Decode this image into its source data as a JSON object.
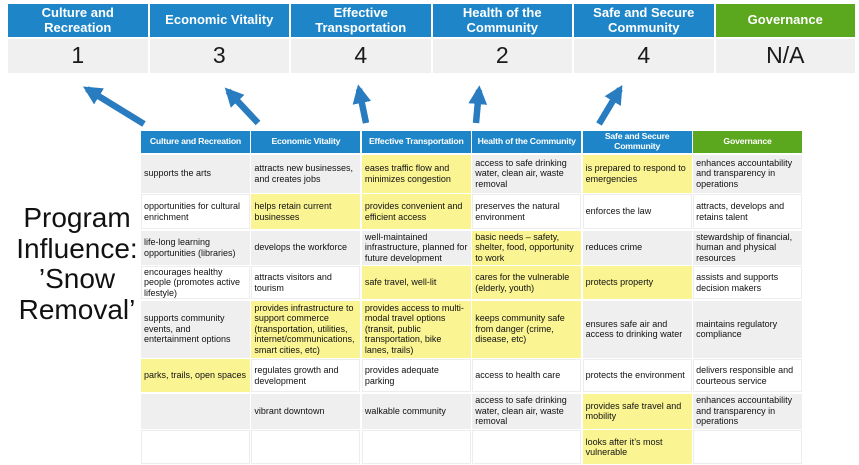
{
  "program_label": "Program Influence: ’Snow Removal’",
  "colors": {
    "header_blue": "#1E86C8",
    "governance_green": "#5BA71E",
    "score_bg": "#F0F0F0",
    "band_gray": "#EFEFEF",
    "highlight_yellow": "#FAF493",
    "arrow_blue": "#2A7CC0"
  },
  "summary": {
    "columns": [
      {
        "label": "Culture and Recreation",
        "score": "1",
        "accent": "blue"
      },
      {
        "label": "Economic Vitality",
        "score": "3",
        "accent": "blue"
      },
      {
        "label": "Effective Transportation",
        "score": "4",
        "accent": "blue"
      },
      {
        "label": "Health of the Community",
        "score": "2",
        "accent": "blue"
      },
      {
        "label": "Safe and Secure Community",
        "score": "4",
        "accent": "blue"
      },
      {
        "label": "Governance",
        "score": "N/A",
        "accent": "green"
      }
    ]
  },
  "matrix": {
    "headers": [
      {
        "label": "Culture and Recreation",
        "accent": "blue"
      },
      {
        "label": "Economic Vitality",
        "accent": "blue"
      },
      {
        "label": "Effective Transportation",
        "accent": "blue"
      },
      {
        "label": "Health of the Community",
        "accent": "blue"
      },
      {
        "label": "Safe and Secure Community",
        "accent": "blue"
      },
      {
        "label": "Governance",
        "accent": "green"
      }
    ],
    "rows": [
      {
        "cells": [
          {
            "text": "supports the arts",
            "highlight": false
          },
          {
            "text": "attracts new businesses, and creates jobs",
            "highlight": false
          },
          {
            "text": "eases traffic flow and minimizes congestion",
            "highlight": true
          },
          {
            "text": "access to safe drinking water, clean air, waste removal",
            "highlight": false
          },
          {
            "text": "is prepared to respond to emergencies",
            "highlight": true
          },
          {
            "text": "enhances accountability and transparency in operations",
            "highlight": false
          }
        ]
      },
      {
        "cells": [
          {
            "text": "opportunities for cultural enrichment",
            "highlight": false
          },
          {
            "text": "helps retain current businesses",
            "highlight": true
          },
          {
            "text": "provides convenient and efficient access",
            "highlight": true
          },
          {
            "text": "preserves the natural environment",
            "highlight": false
          },
          {
            "text": "enforces the law",
            "highlight": false
          },
          {
            "text": "attracts, develops and retains talent",
            "highlight": false
          }
        ]
      },
      {
        "cells": [
          {
            "text": "life-long learning opportunities (libraries)",
            "highlight": false
          },
          {
            "text": "develops the workforce",
            "highlight": false
          },
          {
            "text": "well-maintained infrastructure, planned for future development",
            "highlight": false
          },
          {
            "text": "basic needs – safety, shelter, food, opportunity to work",
            "highlight": true
          },
          {
            "text": "reduces crime",
            "highlight": false
          },
          {
            "text": "stewardship of financial, human and physical resources",
            "highlight": false
          }
        ]
      },
      {
        "cells": [
          {
            "text": "encourages healthy people (promotes active lifestyle)",
            "highlight": false
          },
          {
            "text": "attracts visitors and tourism",
            "highlight": false
          },
          {
            "text": "safe travel, well-lit",
            "highlight": true
          },
          {
            "text": "cares for the vulnerable (elderly, youth)",
            "highlight": true
          },
          {
            "text": "protects property",
            "highlight": true
          },
          {
            "text": "assists and supports decision makers",
            "highlight": false
          }
        ]
      },
      {
        "cells": [
          {
            "text": "supports community events, and entertainment options",
            "highlight": false
          },
          {
            "text": "provides infrastructure to support commerce (transportation, utilities, internet/communications, smart cities, etc)",
            "highlight": true
          },
          {
            "text": "provides access to multi-modal travel options (transit, public transportation, bike lanes, trails)",
            "highlight": true
          },
          {
            "text": "keeps community safe from danger (crime, disease, etc)",
            "highlight": true
          },
          {
            "text": "ensures safe air and access to drinking water",
            "highlight": false
          },
          {
            "text": "maintains regulatory compliance",
            "highlight": false
          }
        ]
      },
      {
        "cells": [
          {
            "text": "parks, trails, open spaces",
            "highlight": true
          },
          {
            "text": "regulates growth and development",
            "highlight": false
          },
          {
            "text": "provides adequate parking",
            "highlight": false
          },
          {
            "text": "access to health care",
            "highlight": false
          },
          {
            "text": "protects the environment",
            "highlight": false
          },
          {
            "text": "delivers responsible and courteous service",
            "highlight": false
          }
        ]
      },
      {
        "cells": [
          {
            "text": "",
            "highlight": false
          },
          {
            "text": "vibrant downtown",
            "highlight": false
          },
          {
            "text": "walkable community",
            "highlight": false
          },
          {
            "text": "access to safe drinking water, clean air, waste removal",
            "highlight": false
          },
          {
            "text": "provides safe travel and mobility",
            "highlight": true
          },
          {
            "text": "enhances accountability and transparency in operations",
            "highlight": false
          }
        ]
      },
      {
        "cells": [
          {
            "text": "",
            "highlight": false
          },
          {
            "text": "",
            "highlight": false
          },
          {
            "text": "",
            "highlight": false
          },
          {
            "text": "",
            "highlight": false
          },
          {
            "text": "looks after it’s most vulnerable",
            "highlight": true
          },
          {
            "text": "",
            "highlight": false
          }
        ]
      }
    ]
  }
}
